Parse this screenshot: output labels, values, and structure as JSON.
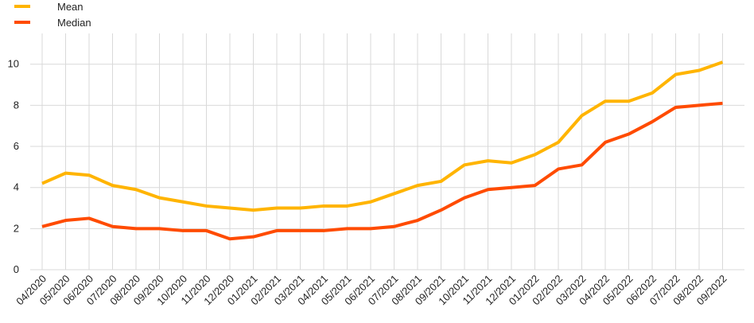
{
  "chart_data": {
    "type": "line",
    "categories": [
      "04/2020",
      "05/2020",
      "06/2020",
      "07/2020",
      "08/2020",
      "09/2020",
      "10/2020",
      "11/2020",
      "12/2020",
      "01/2021",
      "02/2021",
      "03/2021",
      "04/2021",
      "05/2021",
      "06/2021",
      "07/2021",
      "08/2021",
      "09/2021",
      "10/2021",
      "11/2021",
      "12/2021",
      "01/2022",
      "02/2022",
      "03/2022",
      "04/2022",
      "05/2022",
      "06/2022",
      "07/2022",
      "08/2022",
      "09/2022"
    ],
    "series": [
      {
        "name": "Mean",
        "color": "#ffb400",
        "values": [
          4.2,
          4.7,
          4.6,
          4.1,
          3.9,
          3.5,
          3.3,
          3.1,
          3.0,
          2.9,
          3.0,
          3.0,
          3.1,
          3.1,
          3.3,
          3.7,
          4.1,
          4.3,
          5.1,
          5.3,
          5.2,
          5.6,
          6.2,
          7.5,
          8.2,
          8.2,
          8.6,
          9.5,
          9.7,
          10.1
        ]
      },
      {
        "name": "Median",
        "color": "#ff4b00",
        "values": [
          2.1,
          2.4,
          2.5,
          2.1,
          2.0,
          2.0,
          1.9,
          1.9,
          1.5,
          1.6,
          1.9,
          1.9,
          1.9,
          2.0,
          2.0,
          2.1,
          2.4,
          2.9,
          3.5,
          3.9,
          4.0,
          4.1,
          4.9,
          5.1,
          6.2,
          6.6,
          7.2,
          7.9,
          8.0,
          8.1
        ]
      }
    ],
    "ylim": [
      0,
      11.5
    ],
    "yticks": [
      0,
      2,
      4,
      6,
      8,
      10
    ],
    "grid": true
  }
}
